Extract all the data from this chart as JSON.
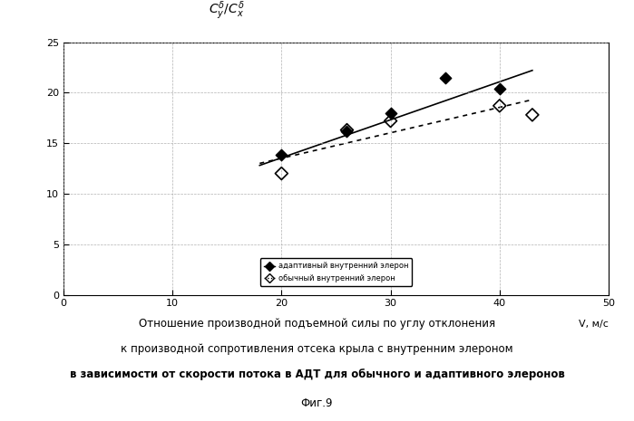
{
  "xlabel": "V, м/с",
  "ylabel_text": "C_y^δ/C_x^δ",
  "xlim": [
    0,
    50
  ],
  "ylim": [
    0,
    25
  ],
  "xticks": [
    0,
    10,
    20,
    30,
    40,
    50
  ],
  "yticks": [
    0,
    5,
    10,
    15,
    20,
    25
  ],
  "adaptive_scatter_x": [
    20,
    26,
    30,
    35,
    40
  ],
  "adaptive_scatter_y": [
    13.8,
    16.2,
    18.0,
    21.5,
    20.4
  ],
  "adaptive_line_x": [
    18,
    43
  ],
  "adaptive_line_y": [
    12.8,
    22.2
  ],
  "ordinary_scatter_x": [
    20,
    26,
    30,
    40,
    43
  ],
  "ordinary_scatter_y": [
    12.0,
    16.3,
    17.2,
    18.7,
    17.8
  ],
  "ordinary_line_x": [
    18,
    43
  ],
  "ordinary_line_y": [
    13.0,
    19.3
  ],
  "legend_label_adaptive": "адаптивный внутренний элерон",
  "legend_label_ordinary": "обычный внутренний элерон",
  "caption_line1": "Отношение производной подъемной силы по углу отклонения",
  "caption_line2": "к производной сопротивления отсека крыла с внутренним элероном",
  "caption_line3": "в зависимости от скорости потока в АДТ для обычного и адаптивного элеронов",
  "fig_label": "Фиг.9",
  "bg_color": "#ffffff",
  "plot_bg_color": "#ffffff"
}
